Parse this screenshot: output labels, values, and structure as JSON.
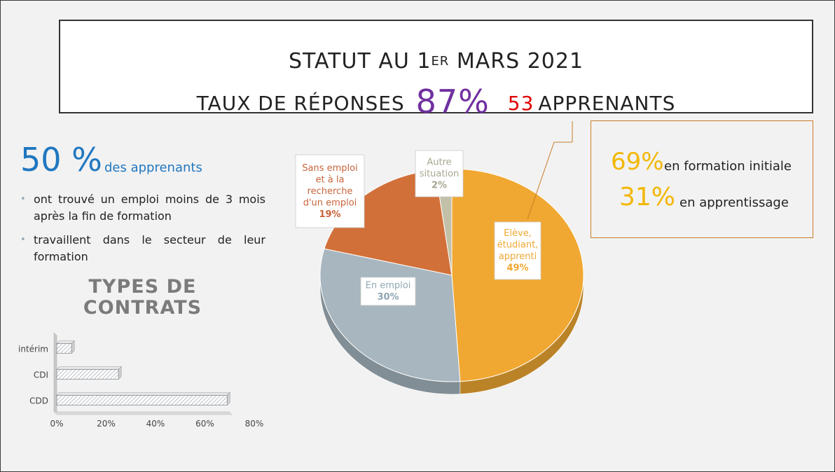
{
  "title": {
    "line1_part1": "STATUT AU 1",
    "line1_sup": "ER",
    "line1_part2": " MARS 2021",
    "line2_label": "TAUX DE RÉPONSES",
    "line2_rate": "87%",
    "line2_count": "53",
    "line2_suffix": "APPRENANTS"
  },
  "left": {
    "big_stat": "50 %",
    "stat_label": "des apprenants",
    "bullets": [
      "ont trouvé un emploi moins de 3 mois après la fin de formation",
      "travaillent dans le secteur de leur formation"
    ],
    "bullet_glyph": "•",
    "contracts_title_line1": "TYPES DE",
    "contracts_title_line2": "CONTRATS"
  },
  "info_box": {
    "initial_pct": "69%",
    "initial_label": "en formation initiale",
    "apprentissage_pct": "31%",
    "apprentissage_label": "en apprentissage"
  },
  "colors": {
    "accent_purple": "#7030a0",
    "accent_red": "#e00000",
    "accent_blue": "#1f77c0",
    "accent_gold": "#f2b705"
  },
  "chart_data": [
    {
      "type": "pie",
      "slices": [
        {
          "label_lines": [
            "Elève,",
            "étudiant,",
            "apprenti",
            "49%"
          ],
          "value": 49,
          "color": "#f0a832",
          "text_color": "#f0a832"
        },
        {
          "label_lines": [
            "En emploi",
            "30%"
          ],
          "value": 30,
          "color": "#a7b6bf",
          "text_color": "#8fa7b3"
        },
        {
          "label_lines": [
            "Sans emploi",
            "et à la",
            "recherche",
            "d'un emploi",
            "19%"
          ],
          "value": 19,
          "color": "#d2703a",
          "text_color": "#c8643a"
        },
        {
          "label_lines": [
            "Autre",
            "situation",
            "2%"
          ],
          "value": 2,
          "color": "#c2c0a8",
          "text_color": "#a8a690"
        }
      ]
    },
    {
      "type": "bar",
      "orientation": "horizontal",
      "categories": [
        "intérim",
        "CDI",
        "CDD"
      ],
      "values": [
        6,
        25,
        69
      ],
      "xlim": [
        0,
        80
      ],
      "xticks": [
        "0%",
        "20%",
        "40%",
        "60%",
        "80%"
      ]
    }
  ]
}
